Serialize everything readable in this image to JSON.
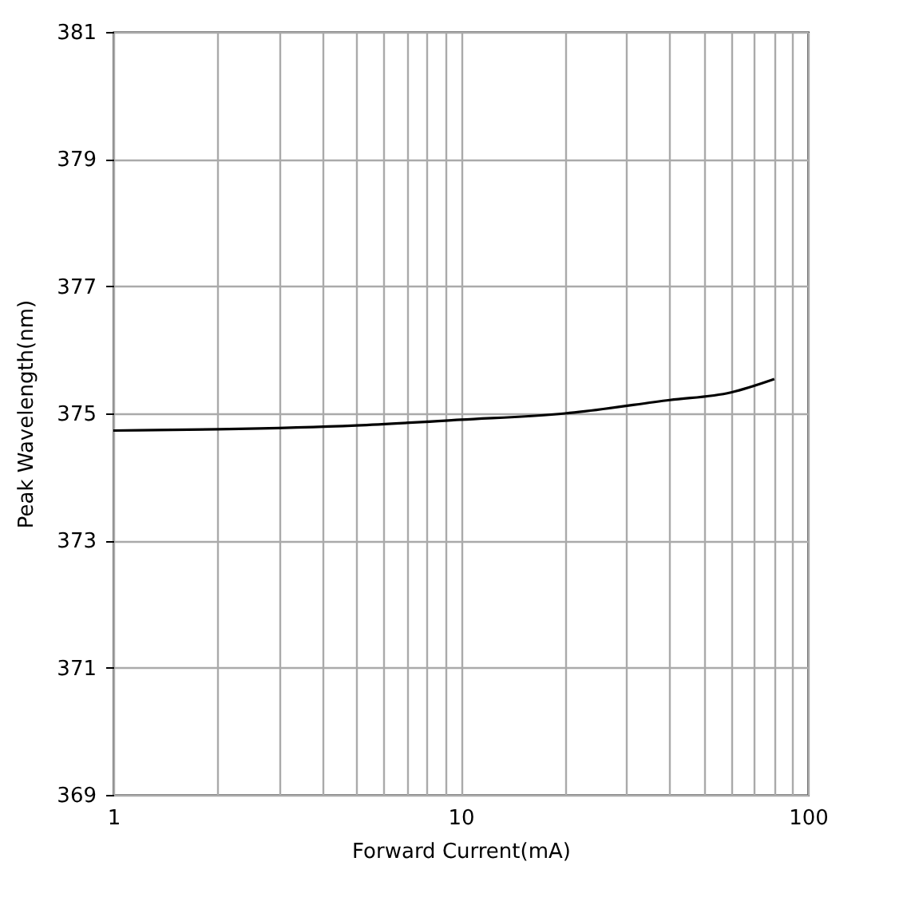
{
  "chart_data": {
    "type": "line",
    "xlabel": "Forward Current(mA)",
    "ylabel": "Peak Wavelength(nm)",
    "log": "x",
    "grid": true,
    "marker": "none",
    "line_style": "solid",
    "x": [
      1,
      2,
      5,
      10,
      20,
      40,
      60,
      80
    ],
    "series": [
      {
        "color": "#000000",
        "values": [
          374.73,
          374.75,
          374.81,
          374.9,
          375.0,
          375.21,
          375.33,
          375.54
        ]
      }
    ],
    "xlim": [
      1,
      100
    ],
    "xticks": [
      1,
      {
        "value": 2,
        "label": null
      },
      {
        "value": 3,
        "label": null
      },
      {
        "value": 4,
        "label": null
      },
      {
        "value": 5,
        "label": null
      },
      {
        "value": 6,
        "label": null
      },
      {
        "value": 7,
        "label": null
      },
      {
        "value": 8,
        "label": null
      },
      {
        "value": 9,
        "label": null
      },
      10,
      {
        "value": 20,
        "label": null
      },
      {
        "value": 30,
        "label": null
      },
      {
        "value": 40,
        "label": null
      },
      {
        "value": 50,
        "label": null
      },
      {
        "value": 60,
        "label": null
      },
      {
        "value": 70,
        "label": null
      },
      {
        "value": 80,
        "label": null
      },
      {
        "value": 90,
        "label": null
      },
      100
    ],
    "ylim": [
      369,
      381
    ],
    "yticks": [
      369,
      371,
      373,
      375,
      377,
      379,
      381
    ]
  }
}
